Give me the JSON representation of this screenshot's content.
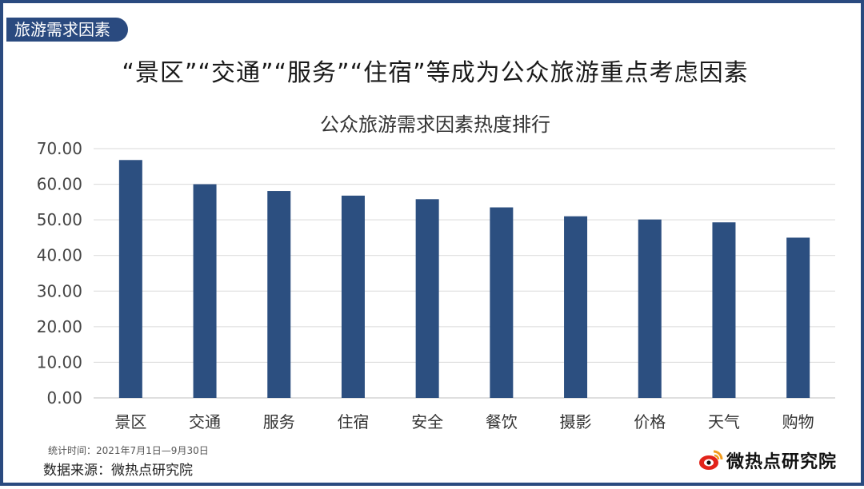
{
  "section_tag": "旅游需求因素",
  "headline": "“景区”“交通”“服务”“住宿”等成为公众旅游重点考虑因素",
  "footer": {
    "period": "统计时间：2021年7月1日—9月30日",
    "source": "数据来源：微热点研究院",
    "brand": "微热点研究院"
  },
  "colors": {
    "bar": "#2c4f80",
    "frame": "#2a4a7f",
    "grid": "#d9d9d9"
  },
  "chart_data": {
    "type": "bar",
    "title": "公众旅游需求因素热度排行",
    "categories": [
      "景区",
      "交通",
      "服务",
      "住宿",
      "安全",
      "餐饮",
      "摄影",
      "价格",
      "天气",
      "购物"
    ],
    "values": [
      66.8,
      60.0,
      58.1,
      56.8,
      55.8,
      53.5,
      51.0,
      50.1,
      49.3,
      45.0
    ],
    "ylim": [
      0,
      70
    ],
    "yticks": [
      "0.00",
      "10.00",
      "20.00",
      "30.00",
      "40.00",
      "50.00",
      "60.00",
      "70.00"
    ],
    "ytick_values": [
      0,
      10,
      20,
      30,
      40,
      50,
      60,
      70
    ],
    "grid": true,
    "legend": "none"
  }
}
